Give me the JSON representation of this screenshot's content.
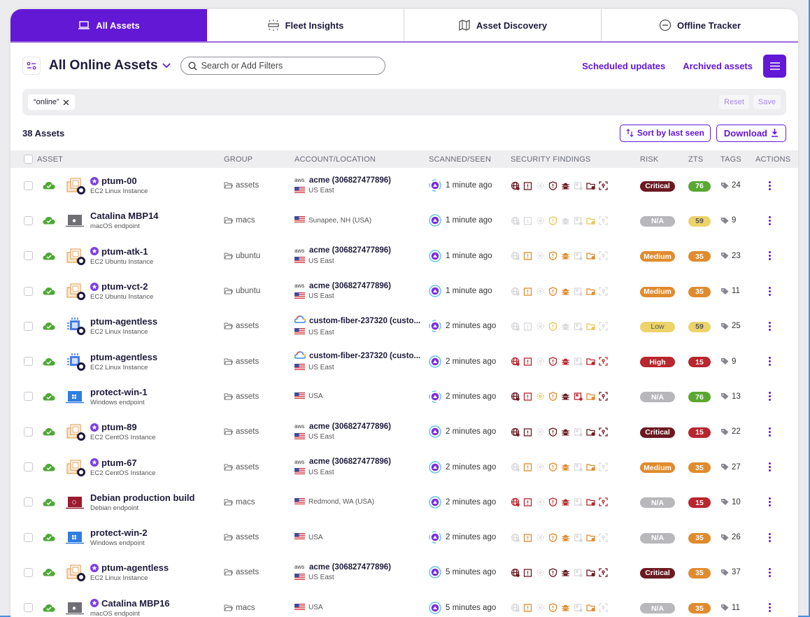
{
  "tabs": [
    {
      "label": "All Assets",
      "icon": "laptop-icon",
      "active": true
    },
    {
      "label": "Fleet Insights",
      "icon": "insights-icon",
      "active": false
    },
    {
      "label": "Asset Discovery",
      "icon": "map-icon",
      "active": false
    },
    {
      "label": "Offline Tracker",
      "icon": "minus-circle-icon",
      "active": false
    }
  ],
  "toolbar": {
    "view_title": "All Online Assets",
    "search_placeholder": "Search or Add Filters",
    "scheduled_updates": "Scheduled updates",
    "archived_assets": "Archived assets"
  },
  "filters": {
    "chips": [
      "“online”"
    ],
    "reset": "Reset",
    "save": "Save"
  },
  "summary": {
    "count": "38 Assets",
    "sort_label": "Sort by last seen",
    "download_label": "Download"
  },
  "table": {
    "headers": [
      "ASSET",
      "GROUP",
      "ACCOUNT/LOCATION",
      "SCANNED/SEEN",
      "SECURITY FINDINGS",
      "RISK",
      "ZTS",
      "TAGS",
      "ACTIONS"
    ],
    "rows": [
      {
        "name": "ptum-00",
        "starred": true,
        "type": "EC2 Linux Instance",
        "icon": "ec2",
        "os": "linux",
        "group": "assets",
        "account": "acme (306827477896)",
        "provider": "aws",
        "location": "US East",
        "seen": "1 minute ago",
        "findings": [
          "#6b1a22",
          "#6b1a22",
          "#d9d9dc",
          "#6b1a22",
          "#6b1a22",
          "#d9d9dc",
          "#6b1a22",
          "#6b1a22"
        ],
        "risk": "Critical",
        "risk_color": "#6b1a22",
        "zts": "76",
        "zts_color": "#5aa832",
        "tags": "24"
      },
      {
        "name": "Catalina MBP14",
        "starred": false,
        "type": "macOS endpoint",
        "icon": "mac",
        "os": "",
        "group": "macs",
        "account": "",
        "provider": "",
        "location": "Sunapee, NH (USA)",
        "seen": "1 minute ago",
        "findings": [
          "#d9d9dc",
          "#d9d9dc",
          "#d9d9dc",
          "#e8c75a",
          "#d9d9dc",
          "#d9d9dc",
          "#e8c75a",
          "#d9d9dc"
        ],
        "risk": "N/A",
        "risk_color": "#b8b8bc",
        "zts": "59",
        "zts_color": "#ecd36a",
        "zts_text": "#555",
        "tags": "9"
      },
      {
        "name": "ptum-atk-1",
        "starred": true,
        "type": "EC2 Ubuntu Instance",
        "icon": "ec2",
        "os": "ubuntu",
        "group": "ubuntu",
        "account": "acme (306827477896)",
        "provider": "aws",
        "location": "US East",
        "seen": "1 minute ago",
        "findings": [
          "#d9d9dc",
          "#e08b2e",
          "#d9d9dc",
          "#e08b2e",
          "#e08b2e",
          "#d9d9dc",
          "#e08b2e",
          "#d9d9dc"
        ],
        "risk": "Medium",
        "risk_color": "#e08b2e",
        "zts": "35",
        "zts_color": "#e08b2e",
        "tags": "23"
      },
      {
        "name": "ptum-vct-2",
        "starred": true,
        "type": "EC2 Ubuntu Instance",
        "icon": "ec2",
        "os": "ubuntu",
        "group": "ubuntu",
        "account": "acme (306827477896)",
        "provider": "aws",
        "location": "US East",
        "seen": "1 minute ago",
        "findings": [
          "#d9d9dc",
          "#e08b2e",
          "#d9d9dc",
          "#e08b2e",
          "#e08b2e",
          "#d9d9dc",
          "#e08b2e",
          "#d9d9dc"
        ],
        "risk": "Medium",
        "risk_color": "#e08b2e",
        "zts": "35",
        "zts_color": "#e08b2e",
        "tags": "11"
      },
      {
        "name": "ptum-agentless",
        "starred": false,
        "type": "EC2 Linux Instance",
        "icon": "chip",
        "os": "linux",
        "group": "assets",
        "account": "custom-fiber-237320 (custo...",
        "provider": "gcp",
        "location": "US East",
        "seen": "2 minutes ago",
        "findings": [
          "#d9d9dc",
          "#d9d9dc",
          "#d9d9dc",
          "#e8c75a",
          "#d9d9dc",
          "#d9d9dc",
          "#e8c75a",
          "#d9d9dc"
        ],
        "risk": "Low",
        "risk_color": "#ecd36a",
        "risk_text": "#555",
        "zts": "59",
        "zts_color": "#ecd36a",
        "zts_text": "#555",
        "tags": "25"
      },
      {
        "name": "ptum-agentless",
        "starred": false,
        "type": "EC2 Linux Instance",
        "icon": "chip",
        "os": "linux",
        "group": "assets",
        "account": "custom-fiber-237320 (custo...",
        "provider": "gcp",
        "location": "US East",
        "seen": "2 minutes ago",
        "findings": [
          "#b8262e",
          "#b8262e",
          "#d9d9dc",
          "#b8262e",
          "#b8262e",
          "#d9d9dc",
          "#b8262e",
          "#b8262e"
        ],
        "risk": "High",
        "risk_color": "#b8262e",
        "zts": "15",
        "zts_color": "#b8262e",
        "tags": "9"
      },
      {
        "name": "protect-win-1",
        "starred": false,
        "type": "Windows endpoint",
        "icon": "win",
        "os": "",
        "group": "assets",
        "account": "",
        "provider": "",
        "location": "USA",
        "seen": "2 minutes ago",
        "findings": [
          "#6b1a22",
          "#b8262e",
          "#e8c75a",
          "#e08b2e",
          "#6b1a22",
          "#b8262e",
          "#e08b2e",
          "#6b1a22"
        ],
        "risk": "N/A",
        "risk_color": "#b8b8bc",
        "zts": "76",
        "zts_color": "#5aa832",
        "tags": "13"
      },
      {
        "name": "ptum-89",
        "starred": true,
        "type": "EC2 CentOS Instance",
        "icon": "ec2",
        "os": "centos",
        "group": "assets",
        "account": "acme (306827477896)",
        "provider": "aws",
        "location": "US East",
        "seen": "2 minutes ago",
        "findings": [
          "#6b1a22",
          "#6b1a22",
          "#d9d9dc",
          "#6b1a22",
          "#6b1a22",
          "#d9d9dc",
          "#6b1a22",
          "#6b1a22"
        ],
        "risk": "Critical",
        "risk_color": "#6b1a22",
        "zts": "15",
        "zts_color": "#b8262e",
        "tags": "22"
      },
      {
        "name": "ptum-67",
        "starred": true,
        "type": "EC2 CentOS Instance",
        "icon": "ec2",
        "os": "centos",
        "group": "assets",
        "account": "acme (306827477896)",
        "provider": "aws",
        "location": "US East",
        "seen": "2 minutes ago",
        "findings": [
          "#d9d9dc",
          "#e08b2e",
          "#d9d9dc",
          "#e08b2e",
          "#e08b2e",
          "#d9d9dc",
          "#e08b2e",
          "#d9d9dc"
        ],
        "risk": "Medium",
        "risk_color": "#e08b2e",
        "zts": "35",
        "zts_color": "#e08b2e",
        "tags": "27"
      },
      {
        "name": "Debian production build",
        "starred": false,
        "type": "Debian endpoint",
        "icon": "debian",
        "os": "",
        "group": "macs",
        "account": "",
        "provider": "",
        "location": "Redmond, WA (USA)",
        "seen": "2 minutes ago",
        "findings": [
          "#b8262e",
          "#b8262e",
          "#d9d9dc",
          "#b8262e",
          "#b8262e",
          "#d9d9dc",
          "#b8262e",
          "#b8262e"
        ],
        "risk": "N/A",
        "risk_color": "#b8b8bc",
        "zts": "15",
        "zts_color": "#b8262e",
        "tags": "10"
      },
      {
        "name": "protect-win-2",
        "starred": false,
        "type": "Windows endpoint",
        "icon": "win",
        "os": "",
        "group": "assets",
        "account": "",
        "provider": "",
        "location": "USA",
        "seen": "2 minutes ago",
        "findings": [
          "#d9d9dc",
          "#e08b2e",
          "#d9d9dc",
          "#e08b2e",
          "#e08b2e",
          "#d9d9dc",
          "#e08b2e",
          "#d9d9dc"
        ],
        "risk": "N/A",
        "risk_color": "#b8b8bc",
        "zts": "35",
        "zts_color": "#e08b2e",
        "tags": "26"
      },
      {
        "name": "ptum-agentless",
        "starred": true,
        "type": "EC2 Linux Instance",
        "icon": "ec2",
        "os": "linux",
        "group": "assets",
        "account": "acme (306827477896)",
        "provider": "aws",
        "location": "US East",
        "seen": "5 minutes ago",
        "findings": [
          "#6b1a22",
          "#6b1a22",
          "#d9d9dc",
          "#6b1a22",
          "#6b1a22",
          "#d9d9dc",
          "#6b1a22",
          "#6b1a22"
        ],
        "risk": "Critical",
        "risk_color": "#6b1a22",
        "zts": "35",
        "zts_color": "#e08b2e",
        "tags": "37"
      },
      {
        "name": "Catalina MBP16",
        "starred": true,
        "type": "macOS endpoint",
        "icon": "mac",
        "os": "",
        "group": "macs",
        "account": "",
        "provider": "",
        "location": "USA",
        "seen": "5 minutes ago",
        "findings": [
          "#d9d9dc",
          "#e08b2e",
          "#d9d9dc",
          "#e08b2e",
          "#e08b2e",
          "#d9d9dc",
          "#e08b2e",
          "#d9d9dc"
        ],
        "risk": "N/A",
        "risk_color": "#b8b8bc",
        "zts": "35",
        "zts_color": "#e08b2e",
        "tags": "11"
      }
    ]
  },
  "colors": {
    "brand": "#6318d6",
    "online": "#4ea836",
    "critical": "#6b1a22",
    "high": "#b8262e",
    "medium": "#e08b2e",
    "low": "#ecd36a",
    "na": "#b8b8bc",
    "zts_good": "#5aa832"
  },
  "finding_icons": [
    "globe-alert-icon",
    "clipboard-alert-icon",
    "gear-alert-icon",
    "shield-alert-icon",
    "bug-icon",
    "image-alert-icon",
    "folder-alert-icon",
    "scan-focus-icon"
  ]
}
